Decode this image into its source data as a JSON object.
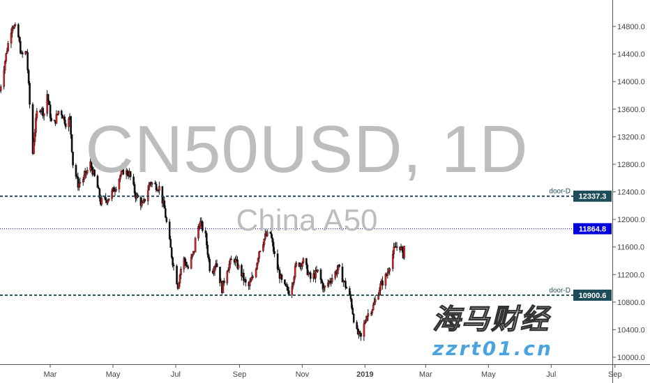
{
  "watermark": {
    "symbol": "CN50USD, 1D",
    "name": "China A50"
  },
  "logo": {
    "chinese": "海马财经",
    "url": "zzrt01.cn"
  },
  "colors": {
    "up": "#e02020",
    "down": "#111111",
    "level_line": "#1e4d5a",
    "price_line": "#0000dd"
  },
  "chart_data": {
    "type": "candlestick",
    "title": "CN50USD, 1D",
    "subtitle": "China A50",
    "ylim": [
      9950,
      15000
    ],
    "y_ticks": [
      10000,
      10400,
      10800,
      11200,
      11600,
      12000,
      12400,
      12800,
      13200,
      13600,
      14000,
      14400,
      14800
    ],
    "y_tick_labels": [
      "10000.0",
      "10400.0",
      "10800.0",
      "11200.0",
      "11600.0",
      "12000.0",
      "12400.0",
      "12800.0",
      "13200.0",
      "13600.0",
      "14000.0",
      "14400.0",
      "14800.0"
    ],
    "x_tick_labels": [
      {
        "label": "Mar",
        "date": "2018-03-01"
      },
      {
        "label": "May",
        "date": "2018-05-01"
      },
      {
        "label": "Jul",
        "date": "2018-07-01"
      },
      {
        "label": "Sep",
        "date": "2018-09-01"
      },
      {
        "label": "Nov",
        "date": "2018-11-01"
      },
      {
        "label": "2019",
        "date": "2019-01-01"
      },
      {
        "label": "Mar",
        "date": "2019-03-01"
      },
      {
        "label": "May",
        "date": "2019-05-01"
      },
      {
        "label": "Jul",
        "date": "2019-07-01"
      },
      {
        "label": "Sep",
        "date": "2019-09-01"
      }
    ],
    "x_range": [
      "2018-01-11",
      "2019-09-20"
    ],
    "close_path": [
      [
        "2018-01-11",
        13870
      ],
      [
        "2018-01-18",
        14477
      ],
      [
        "2018-01-23",
        14830
      ],
      [
        "2018-01-28",
        14730
      ],
      [
        "2018-02-01",
        14375
      ],
      [
        "2018-02-06",
        14430
      ],
      [
        "2018-02-09",
        13670
      ],
      [
        "2018-02-11",
        12760
      ],
      [
        "2018-02-13",
        13160
      ],
      [
        "2018-02-17",
        13670
      ],
      [
        "2018-02-24",
        13520
      ],
      [
        "2018-02-26",
        13820
      ],
      [
        "2018-03-03",
        13310
      ],
      [
        "2018-03-10",
        13620
      ],
      [
        "2018-03-17",
        13365
      ],
      [
        "2018-03-20",
        13470
      ],
      [
        "2018-03-23",
        12810
      ],
      [
        "2018-03-28",
        12510
      ],
      [
        "2018-04-03",
        12610
      ],
      [
        "2018-04-09",
        12810
      ],
      [
        "2018-04-16",
        12460
      ],
      [
        "2018-04-19",
        12250
      ],
      [
        "2018-04-26",
        12300
      ],
      [
        "2018-05-03",
        12460
      ],
      [
        "2018-05-10",
        12710
      ],
      [
        "2018-05-17",
        12660
      ],
      [
        "2018-05-23",
        12350
      ],
      [
        "2018-05-30",
        12200
      ],
      [
        "2018-06-06",
        12540
      ],
      [
        "2018-06-15",
        12460
      ],
      [
        "2018-06-20",
        12150
      ],
      [
        "2018-06-24",
        11750
      ],
      [
        "2018-06-28",
        11390
      ],
      [
        "2018-07-03",
        11040
      ],
      [
        "2018-07-08",
        11450
      ],
      [
        "2018-07-13",
        11290
      ],
      [
        "2018-07-19",
        11550
      ],
      [
        "2018-07-21",
        11850
      ],
      [
        "2018-07-25",
        11950
      ],
      [
        "2018-07-30",
        11750
      ],
      [
        "2018-08-04",
        11190
      ],
      [
        "2018-08-09",
        11390
      ],
      [
        "2018-08-15",
        10990
      ],
      [
        "2018-08-20",
        11290
      ],
      [
        "2018-08-26",
        11450
      ],
      [
        "2018-09-02",
        11240
      ],
      [
        "2018-09-09",
        10990
      ],
      [
        "2018-09-16",
        11240
      ],
      [
        "2018-09-20",
        11550
      ],
      [
        "2018-09-26",
        11750
      ],
      [
        "2018-10-01",
        11800
      ],
      [
        "2018-10-06",
        11390
      ],
      [
        "2018-10-13",
        11040
      ],
      [
        "2018-10-20",
        10940
      ],
      [
        "2018-10-26",
        11340
      ],
      [
        "2018-11-02",
        11390
      ],
      [
        "2018-11-09",
        11140
      ],
      [
        "2018-11-16",
        11240
      ],
      [
        "2018-11-22",
        10990
      ],
      [
        "2018-11-29",
        11140
      ],
      [
        "2018-12-06",
        11290
      ],
      [
        "2018-12-13",
        11040
      ],
      [
        "2018-12-18",
        10840
      ],
      [
        "2018-12-23",
        10380
      ],
      [
        "2018-12-28",
        10280
      ],
      [
        "2019-01-02",
        10590
      ],
      [
        "2019-01-09",
        10740
      ],
      [
        "2019-01-16",
        11040
      ],
      [
        "2019-01-22",
        11190
      ],
      [
        "2019-01-29",
        11550
      ],
      [
        "2019-02-03",
        11650
      ],
      [
        "2019-02-07",
        11490
      ],
      [
        "2019-02-10",
        11864.8
      ]
    ],
    "levels": [
      {
        "label": "door-D",
        "value": 12337.3,
        "value_label": "12337.3",
        "style": "dashed"
      },
      {
        "label": "door-D",
        "value": 10900.6,
        "value_label": "10900.6",
        "style": "dashed"
      }
    ],
    "last_price": {
      "value": 11864.8,
      "value_label": "11864.8"
    }
  }
}
